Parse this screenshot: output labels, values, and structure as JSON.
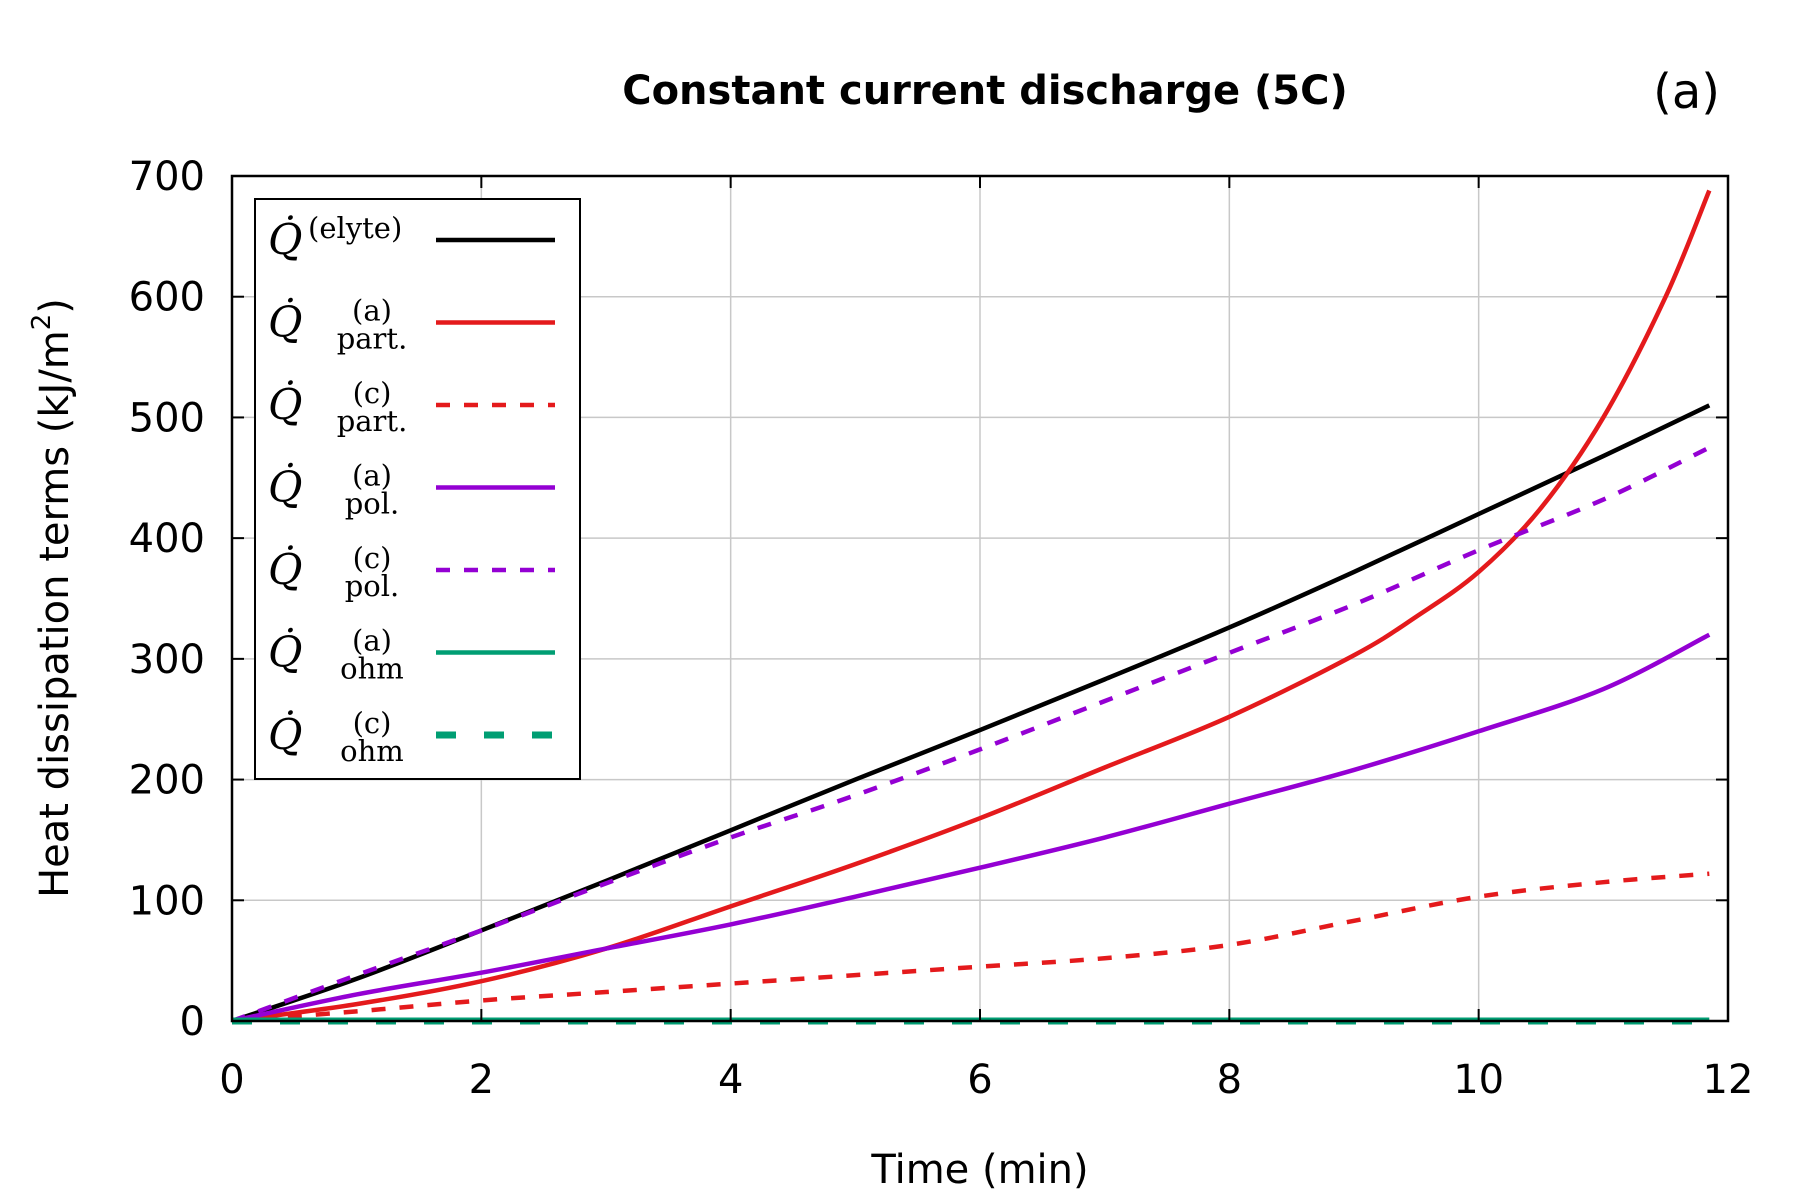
{
  "chart_data": {
    "type": "line",
    "title": "Constant current discharge (5C)",
    "panel_label": "(a)",
    "xlabel": "Time (min)",
    "ylabel_main": "Heat dissipation terms (kJ/m",
    "ylabel_sup": "2",
    "ylabel_end": ")",
    "xlim": [
      0,
      12
    ],
    "ylim": [
      0,
      700
    ],
    "xticks": [
      0,
      2,
      4,
      6,
      8,
      10,
      12
    ],
    "yticks": [
      0,
      100,
      200,
      300,
      400,
      500,
      600,
      700
    ],
    "grid": true,
    "legend_position": "top-left",
    "legend_symbol": "Q̇",
    "series": [
      {
        "name": "elyte",
        "sup": "(elyte)",
        "sub": "",
        "color": "#000000",
        "dash": "solid",
        "x": [
          0,
          1,
          2,
          3,
          4,
          5,
          6,
          7,
          8,
          9,
          10,
          11,
          11.85
        ],
        "y": [
          0,
          35,
          75,
          116,
          158,
          200,
          241,
          283,
          326,
          372,
          420,
          468,
          510
        ]
      },
      {
        "name": "part-a",
        "sup": "(a)",
        "sub": "part.",
        "color": "#e41a1c",
        "dash": "solid",
        "x": [
          0,
          1,
          2,
          3,
          4,
          5,
          6,
          7,
          8,
          9,
          9.5,
          10,
          10.5,
          11,
          11.5,
          11.85
        ],
        "y": [
          0,
          14,
          33,
          60,
          95,
          130,
          168,
          210,
          252,
          303,
          335,
          372,
          425,
          500,
          600,
          688
        ]
      },
      {
        "name": "part-c",
        "sup": "(c)",
        "sub": "part.",
        "color": "#e41a1c",
        "dash": "short",
        "x": [
          0,
          1,
          2,
          3,
          4,
          5,
          6,
          7,
          8,
          9,
          10,
          11,
          11.85
        ],
        "y": [
          0,
          8,
          17,
          24,
          31,
          38,
          45,
          52,
          63,
          83,
          103,
          115,
          122
        ]
      },
      {
        "name": "pol-a",
        "sup": "(a)",
        "sub": "pol.",
        "color": "#9400d3",
        "dash": "solid",
        "x": [
          0,
          1,
          2,
          3,
          4,
          5,
          6,
          7,
          8,
          9,
          10,
          11,
          11.85
        ],
        "y": [
          0,
          22,
          40,
          60,
          80,
          103,
          127,
          152,
          180,
          208,
          240,
          275,
          320
        ]
      },
      {
        "name": "pol-c",
        "sup": "(c)",
        "sub": "pol.",
        "color": "#9400d3",
        "dash": "short",
        "x": [
          0,
          1,
          2,
          3,
          4,
          5,
          6,
          7,
          8,
          9,
          10,
          11,
          11.85
        ],
        "y": [
          0,
          38,
          75,
          114,
          152,
          187,
          225,
          265,
          305,
          345,
          390,
          432,
          475
        ]
      },
      {
        "name": "ohm-a",
        "sup": "(a)",
        "sub": "ohm",
        "color": "#009e73",
        "dash": "solid",
        "x": [
          0,
          11.85
        ],
        "y": [
          1,
          1
        ]
      },
      {
        "name": "ohm-c",
        "sup": "(c)",
        "sub": "ohm",
        "color": "#009e73",
        "dash": "long",
        "x": [
          0,
          11.85
        ],
        "y": [
          0,
          0
        ]
      }
    ]
  }
}
